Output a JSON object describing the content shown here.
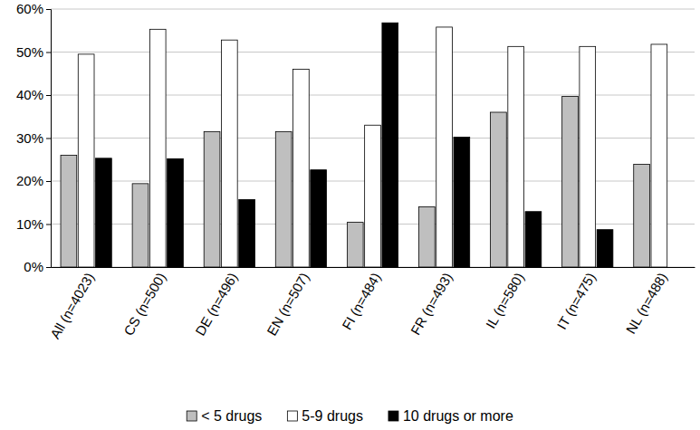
{
  "chart_data": {
    "type": "bar",
    "categories": [
      "All (n=4023)",
      "CS (n=500)",
      "DE (n=496)",
      "EN (n=507)",
      "FI (n=484)",
      "FR (n=493)",
      "IL (n=580)",
      "IT (n=475)",
      "NL (n=488)"
    ],
    "series": [
      {
        "name": "< 5 drugs",
        "color": "#bfbfbf",
        "values": [
          26,
          19.4,
          31.5,
          31.5,
          10.4,
          14,
          36,
          39.7,
          23.9
        ]
      },
      {
        "name": "5-9 drugs",
        "color": "#ffffff",
        "values": [
          49.5,
          55.3,
          52.8,
          46,
          33,
          55.8,
          51.3,
          51.3,
          51.8
        ]
      },
      {
        "name": "10 drugs or more",
        "color": "#000000",
        "values": [
          25.3,
          25.2,
          15.7,
          22.6,
          56.8,
          30.2,
          12.9,
          8.7,
          null
        ]
      }
    ],
    "ylim": [
      0,
      60
    ],
    "yticks": [
      {
        "value": 0,
        "label": "0%"
      },
      {
        "value": 10,
        "label": "10%"
      },
      {
        "value": 20,
        "label": "20%"
      },
      {
        "value": 30,
        "label": "30%"
      },
      {
        "value": 40,
        "label": "40%"
      },
      {
        "value": 50,
        "label": "50%"
      },
      {
        "value": 60,
        "label": "60%"
      }
    ],
    "grid": true,
    "legend": "bottom"
  }
}
